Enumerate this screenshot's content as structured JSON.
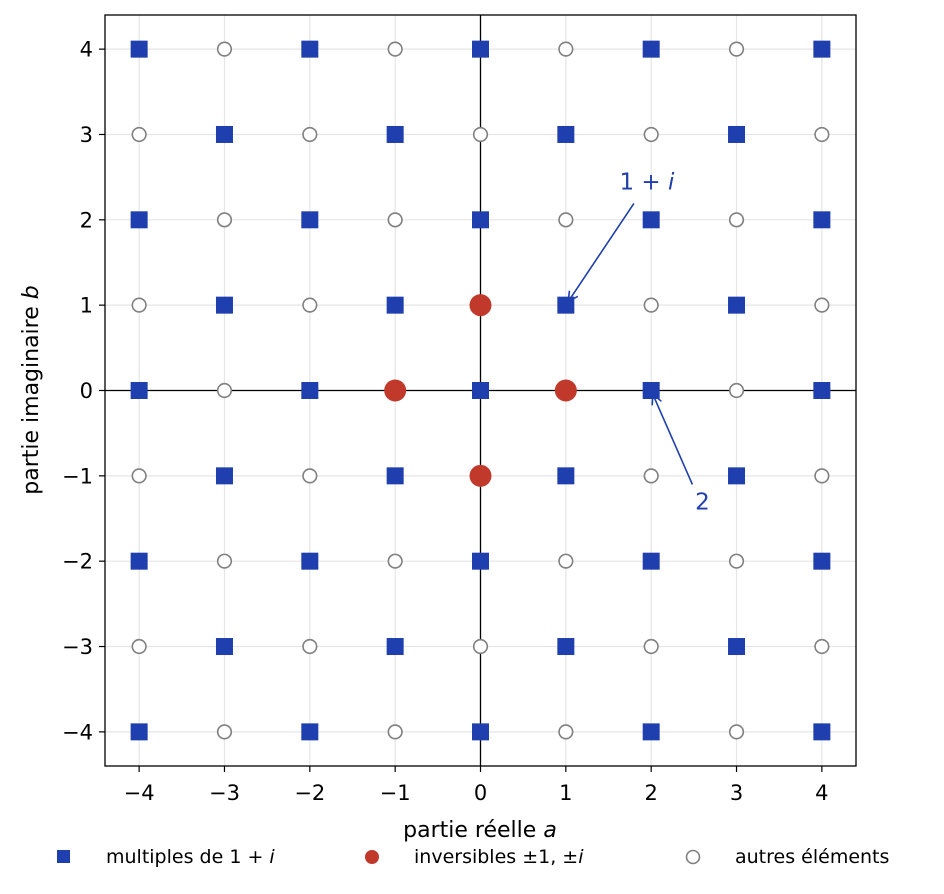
{
  "chart_data": {
    "type": "scatter",
    "xlabel": "partie réelle a",
    "xlabel_text": "partie réelle ",
    "xlabel_var": "a",
    "ylabel": "partie imaginaire b",
    "ylabel_text": "partie imaginaire ",
    "ylabel_var": "b",
    "xlim": [
      -4.4,
      4.4
    ],
    "ylim": [
      -4.4,
      4.4
    ],
    "xticks": [
      -4,
      -3,
      -2,
      -1,
      0,
      1,
      2,
      3,
      4
    ],
    "yticks": [
      -4,
      -3,
      -2,
      -1,
      0,
      1,
      2,
      3,
      4
    ],
    "xtick_labels": [
      "−4",
      "−3",
      "−2",
      "−1",
      "0",
      "1",
      "2",
      "3",
      "4"
    ],
    "ytick_labels": [
      "−4",
      "−3",
      "−2",
      "−1",
      "0",
      "1",
      "2",
      "3",
      "4"
    ],
    "grid": true,
    "legend_position": "bottom",
    "colors": {
      "multiples": "#1f3fae",
      "inversibles": "#c0392b",
      "autres": "#808080",
      "axes": "#000000",
      "grid": "#e6e6e6"
    },
    "series": [
      {
        "name": "multiples de 1 + i",
        "name_prefix": "multiples de 1 + ",
        "name_var": "i",
        "marker": "square",
        "rule": "a + b even, not a unit",
        "points": [
          [
            -4,
            -4
          ],
          [
            -4,
            -2
          ],
          [
            -4,
            0
          ],
          [
            -4,
            2
          ],
          [
            -4,
            4
          ],
          [
            -3,
            -3
          ],
          [
            -3,
            -1
          ],
          [
            -3,
            1
          ],
          [
            -3,
            3
          ],
          [
            -2,
            -4
          ],
          [
            -2,
            -2
          ],
          [
            -2,
            0
          ],
          [
            -2,
            2
          ],
          [
            -2,
            4
          ],
          [
            -1,
            -3
          ],
          [
            -1,
            -1
          ],
          [
            -1,
            1
          ],
          [
            -1,
            3
          ],
          [
            0,
            -4
          ],
          [
            0,
            -2
          ],
          [
            0,
            0
          ],
          [
            0,
            2
          ],
          [
            0,
            4
          ],
          [
            1,
            -3
          ],
          [
            1,
            -1
          ],
          [
            1,
            1
          ],
          [
            1,
            3
          ],
          [
            2,
            -4
          ],
          [
            2,
            -2
          ],
          [
            2,
            0
          ],
          [
            2,
            2
          ],
          [
            2,
            4
          ],
          [
            3,
            -3
          ],
          [
            3,
            -1
          ],
          [
            3,
            1
          ],
          [
            3,
            3
          ],
          [
            4,
            -4
          ],
          [
            4,
            -2
          ],
          [
            4,
            0
          ],
          [
            4,
            2
          ],
          [
            4,
            4
          ]
        ]
      },
      {
        "name": "inversibles ±1, ±i",
        "name_prefix": "inversibles ±1, ±",
        "name_var": "i",
        "marker": "circle-filled",
        "points": [
          [
            1,
            0
          ],
          [
            -1,
            0
          ],
          [
            0,
            1
          ],
          [
            0,
            -1
          ]
        ]
      },
      {
        "name": "autres éléments",
        "marker": "circle-open",
        "rule": "a + b odd, not a unit",
        "points": [
          [
            -4,
            -3
          ],
          [
            -4,
            -1
          ],
          [
            -4,
            1
          ],
          [
            -4,
            3
          ],
          [
            -3,
            -4
          ],
          [
            -3,
            -2
          ],
          [
            -3,
            0
          ],
          [
            -3,
            2
          ],
          [
            -3,
            4
          ],
          [
            -2,
            -3
          ],
          [
            -2,
            -1
          ],
          [
            -2,
            1
          ],
          [
            -2,
            3
          ],
          [
            -1,
            -4
          ],
          [
            -1,
            -2
          ],
          [
            -1,
            2
          ],
          [
            -1,
            4
          ],
          [
            0,
            -3
          ],
          [
            0,
            3
          ],
          [
            1,
            -4
          ],
          [
            1,
            -2
          ],
          [
            1,
            2
          ],
          [
            1,
            4
          ],
          [
            2,
            -3
          ],
          [
            2,
            -1
          ],
          [
            2,
            1
          ],
          [
            2,
            3
          ],
          [
            3,
            -4
          ],
          [
            3,
            -2
          ],
          [
            3,
            0
          ],
          [
            3,
            2
          ],
          [
            3,
            4
          ],
          [
            4,
            -3
          ],
          [
            4,
            -1
          ],
          [
            4,
            1
          ],
          [
            4,
            3
          ]
        ]
      }
    ],
    "annotations": [
      {
        "text": "1 + i",
        "text_prefix": "1 + ",
        "text_var": "i",
        "target": [
          1,
          1
        ],
        "text_at": [
          1.95,
          2.45
        ]
      },
      {
        "text": "2",
        "text_prefix": "2",
        "text_var": "",
        "target": [
          2,
          0
        ],
        "text_at": [
          2.6,
          -1.3
        ]
      }
    ]
  }
}
